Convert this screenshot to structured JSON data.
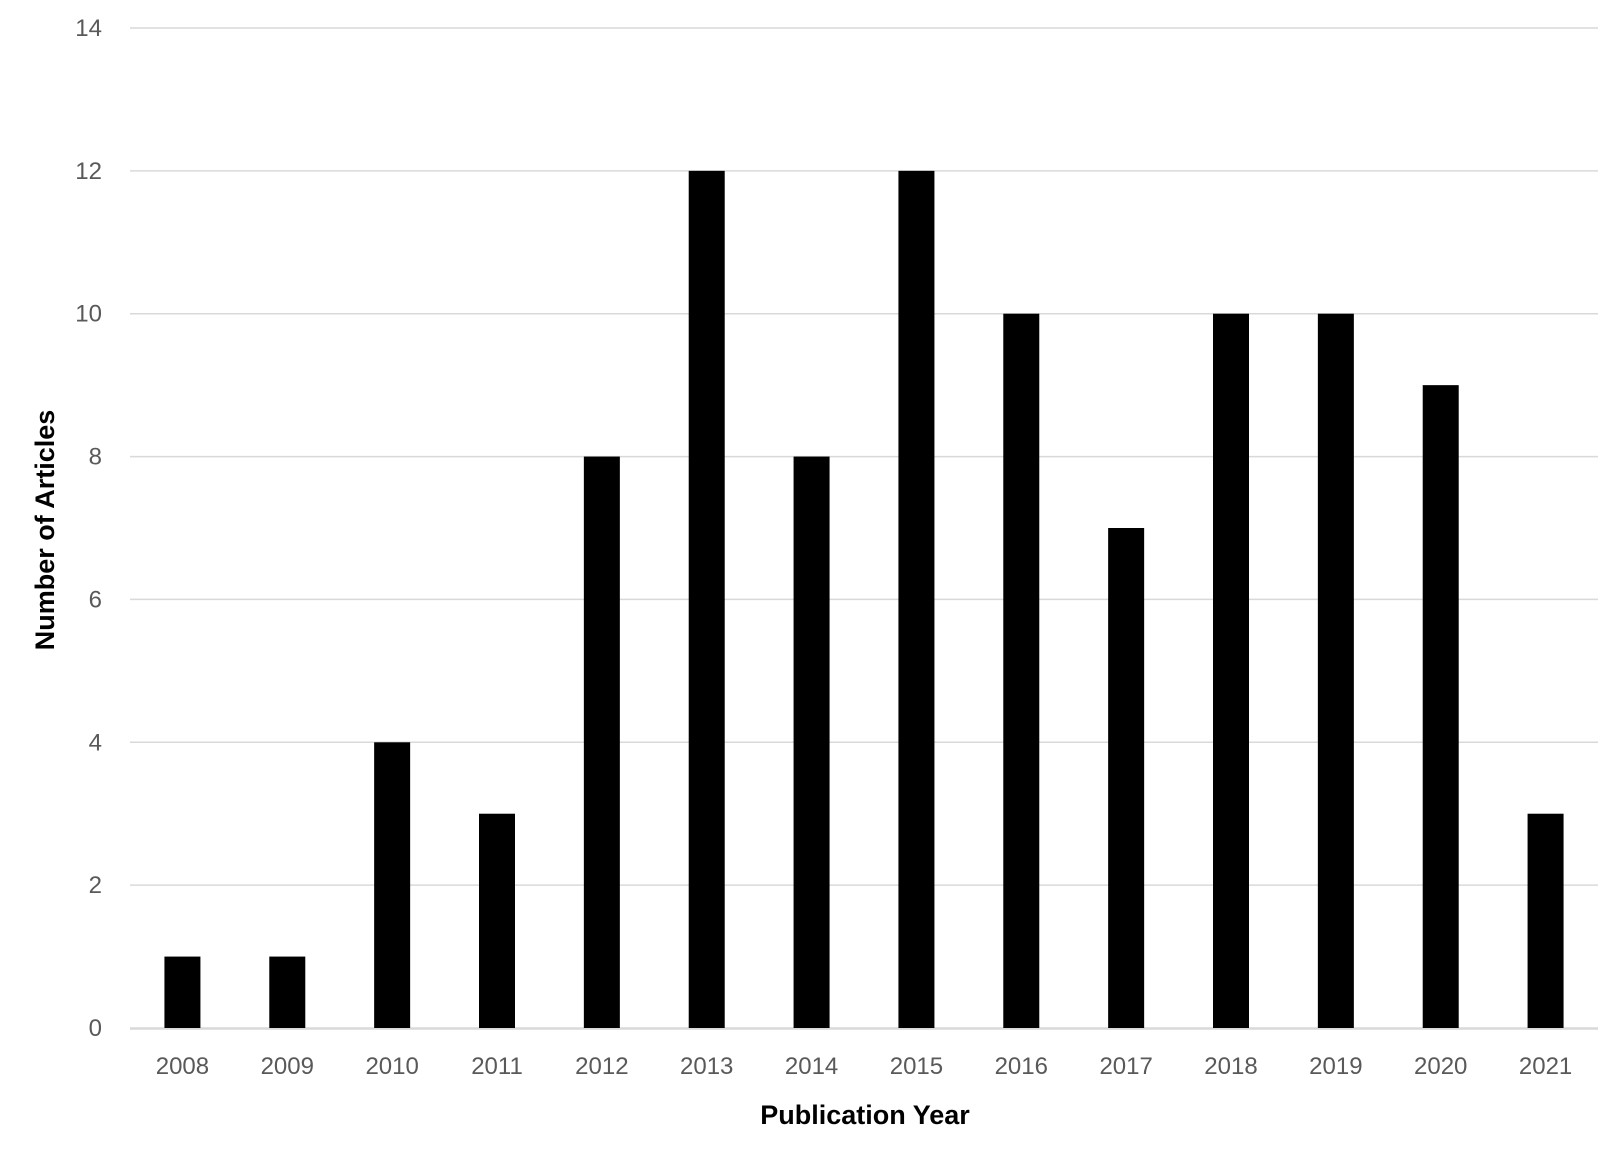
{
  "chart_data": {
    "type": "bar",
    "title": "",
    "xlabel": "Publication Year",
    "ylabel": "Number of Articles",
    "categories": [
      "2008",
      "2009",
      "2010",
      "2011",
      "2012",
      "2013",
      "2014",
      "2015",
      "2016",
      "2017",
      "2018",
      "2019",
      "2020",
      "2021"
    ],
    "values": [
      1,
      1,
      4,
      3,
      8,
      12,
      8,
      12,
      10,
      7,
      10,
      10,
      9,
      3
    ],
    "ylim": [
      0,
      14
    ],
    "yticks": [
      "0",
      "2",
      "4",
      "6",
      "8",
      "10",
      "12",
      "14"
    ],
    "grid": true,
    "legend": "none",
    "colors": {
      "bar": "#000000",
      "grid": "#d9d9d9",
      "tick_text": "#595959",
      "axis_title": "#000000"
    }
  }
}
